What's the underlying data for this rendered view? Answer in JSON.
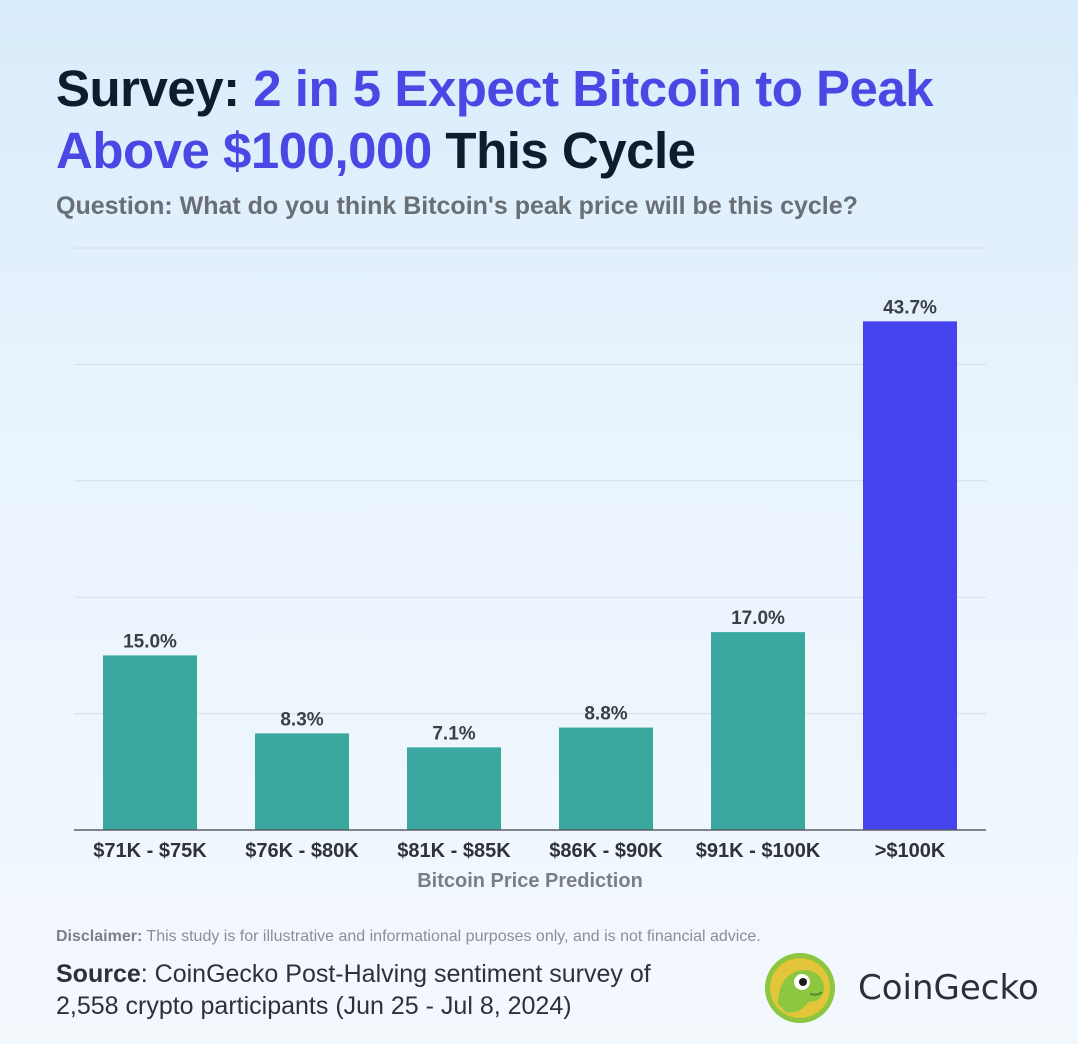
{
  "title": {
    "part1": "Survey: ",
    "part2": "2 in 5 Expect Bitcoin to Peak Above $100,000",
    "part3": " This Cycle"
  },
  "subtitle": "Question: What do you think Bitcoin's peak price will be this cycle?",
  "chart_data": {
    "type": "bar",
    "categories": [
      "$71K - $75K",
      "$76K - $80K",
      "$81K - $85K",
      "$86K - $90K",
      "$91K - $100K",
      ">$100K"
    ],
    "values": [
      15.0,
      8.3,
      7.1,
      8.8,
      17.0,
      43.7
    ],
    "data_labels": [
      "15.0%",
      "8.3%",
      "7.1%",
      "8.8%",
      "17.0%",
      "43.7%"
    ],
    "xlabel": "Bitcoin Price Prediction",
    "ylabel": "",
    "ylim": [
      0,
      50
    ],
    "grid": true,
    "colors": {
      "default": "#3aa89e",
      "highlight": "#4443ee"
    },
    "highlight_index": 5
  },
  "disclaimer": {
    "label": "Disclaimer:",
    "text": " This study is for illustrative and informational purposes only, and is not financial advice."
  },
  "source": {
    "label": "Source",
    "text": ": CoinGecko Post-Halving sentiment survey of 2,558 crypto participants (Jun 25 - Jul 8, 2024)"
  },
  "brand": {
    "name": "CoinGecko",
    "icon": "gecko-logo-icon"
  }
}
